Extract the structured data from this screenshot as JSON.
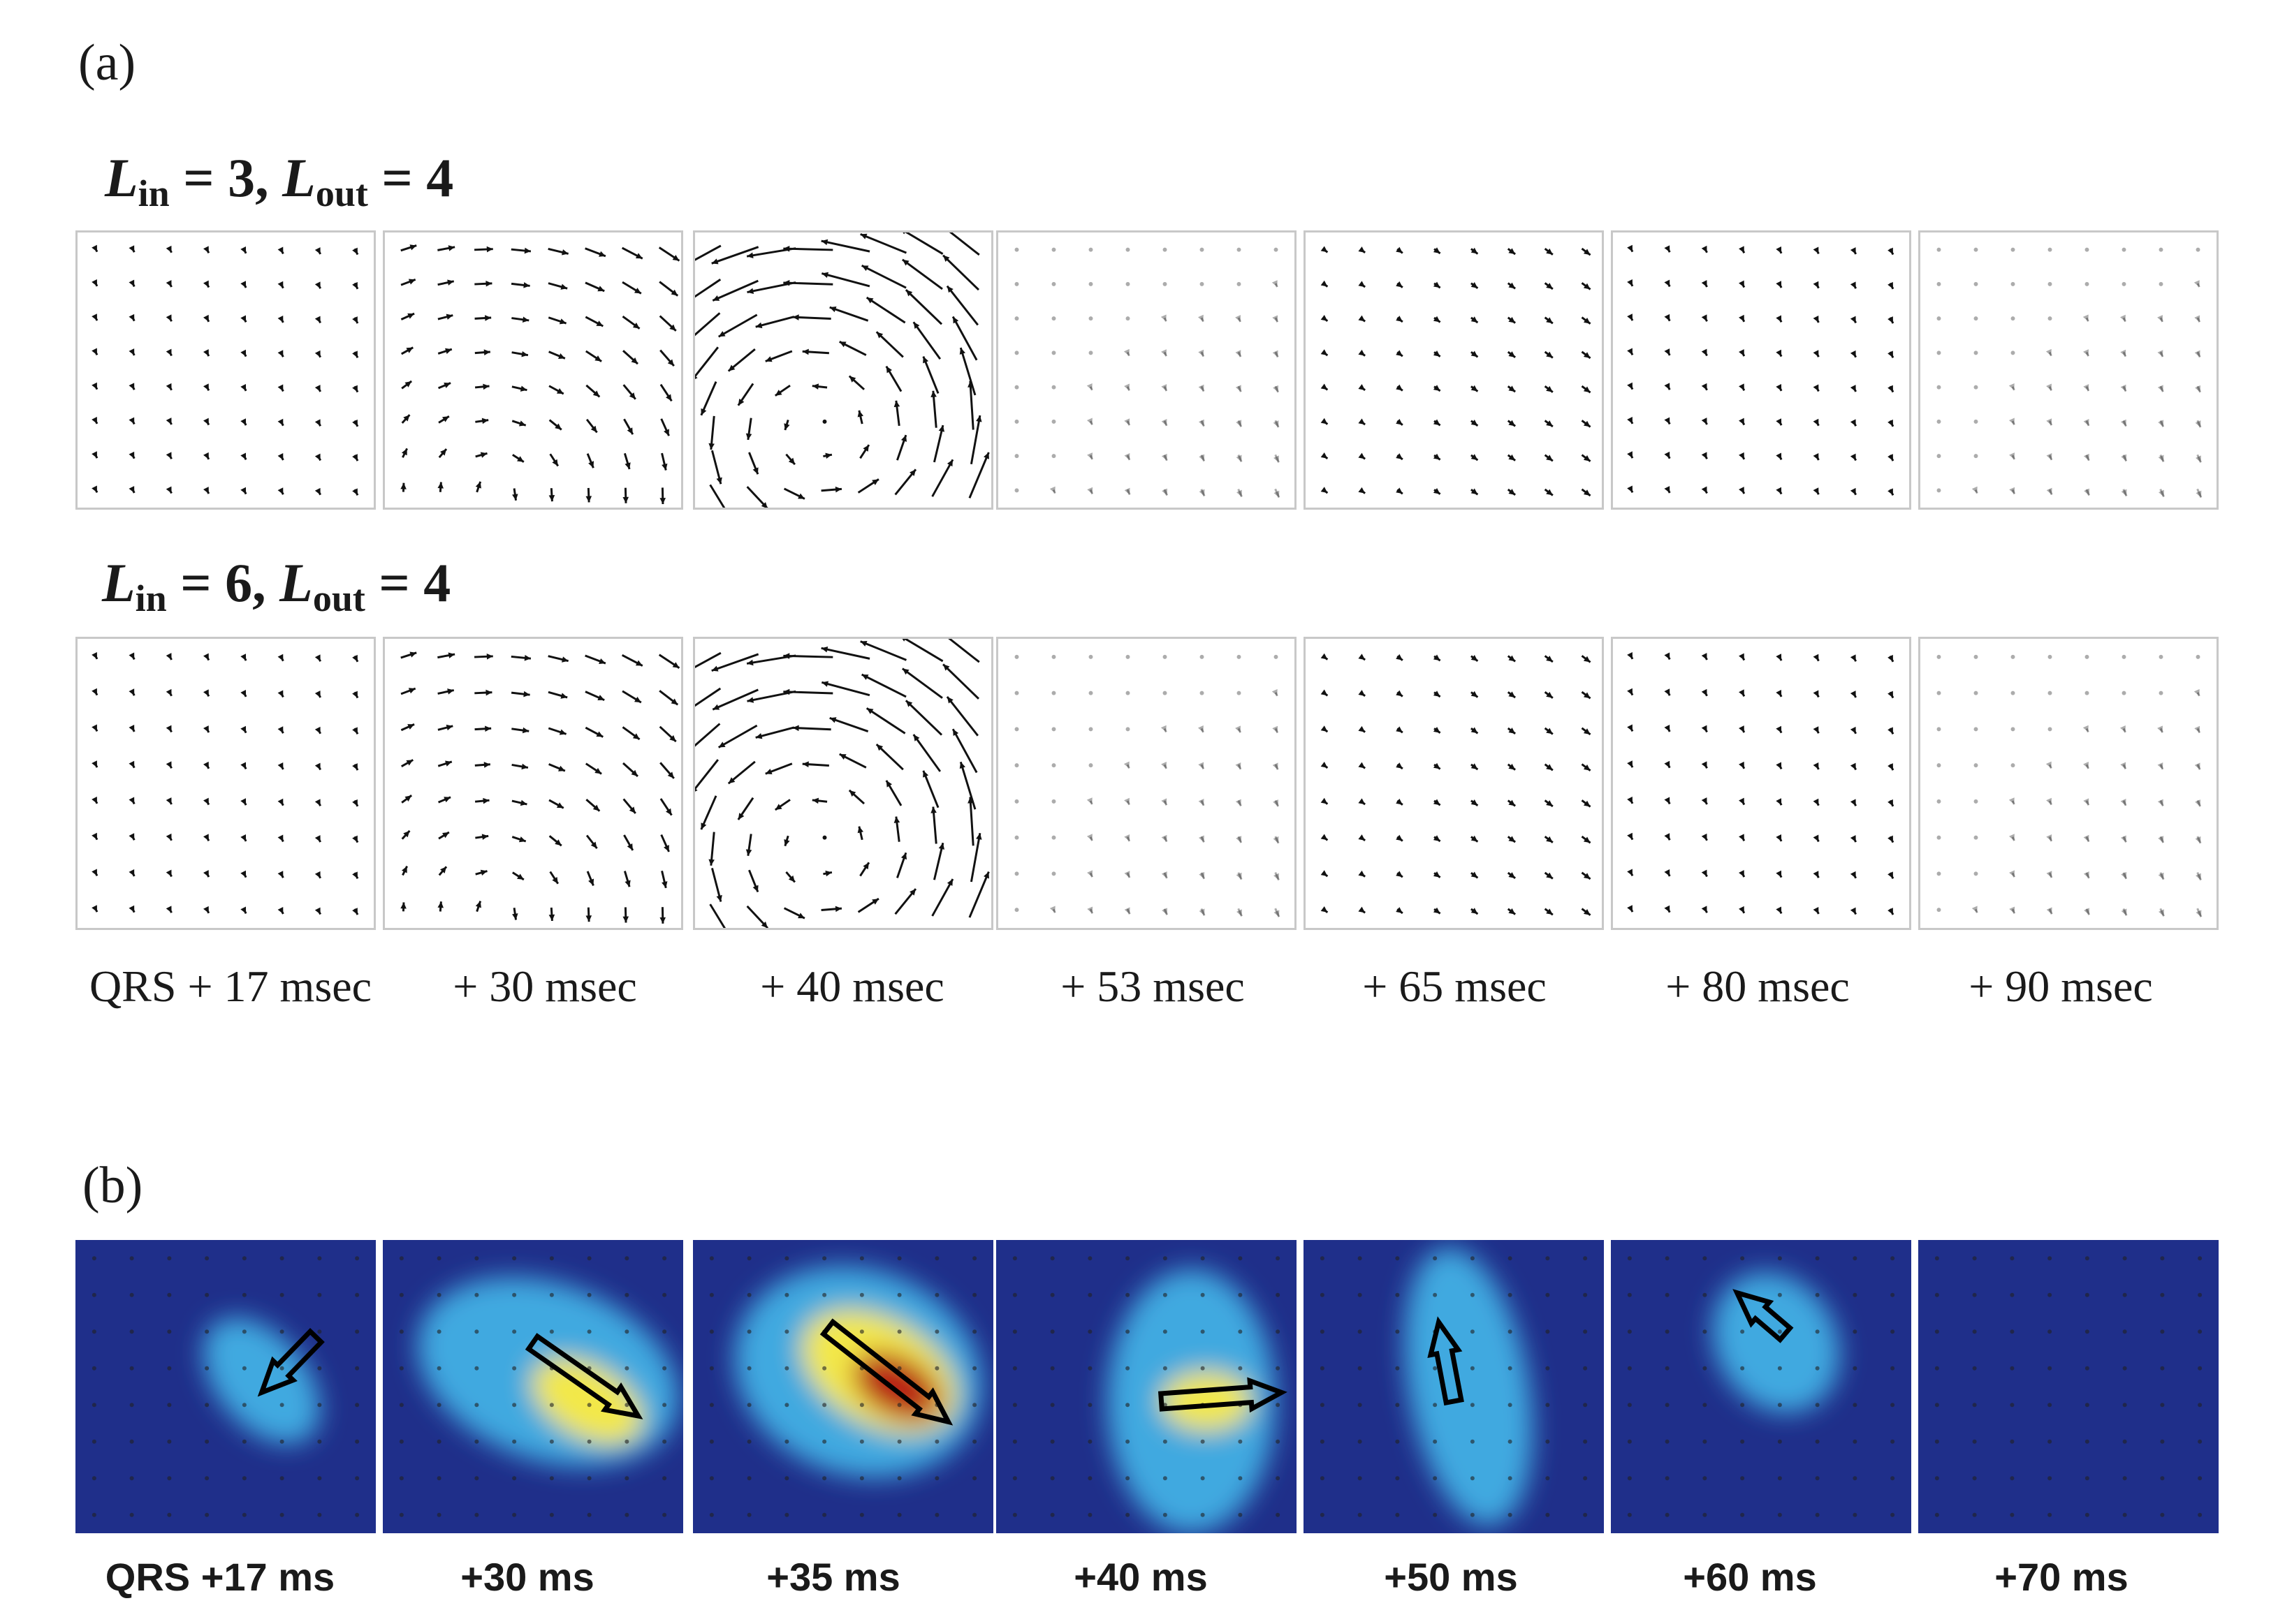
{
  "part_a": {
    "label": "(a)",
    "rows": [
      {
        "label_L1": "L",
        "sub1": "in",
        "eq1": " = 3, ",
        "label_L2": "L",
        "sub2": "out",
        "eq2": " = 4"
      },
      {
        "label_L1": "L",
        "sub1": "in",
        "eq1": " = 6, ",
        "label_L2": "L",
        "sub2": "out",
        "eq2": " = 4"
      }
    ],
    "times": [
      "QRS + 17 msec",
      "+ 30 msec",
      "+ 40 msec",
      "+ 53 msec",
      "+ 65 msec",
      "+ 80 msec",
      "+ 90 msec"
    ]
  },
  "part_b": {
    "label": "(b)",
    "times": [
      "QRS +17 ms",
      "+30 ms",
      "+35 ms",
      "+40 ms",
      "+50 ms",
      "+60 ms",
      "+70 ms"
    ]
  },
  "colors": {
    "arrow": "#111111",
    "panel_border": "#c8c8c8",
    "heat_low": "#1f2f8a",
    "heat_mid": "#3fa9e0",
    "heat_high": "#f3e84a",
    "heat_peak": "#b81d12"
  }
}
